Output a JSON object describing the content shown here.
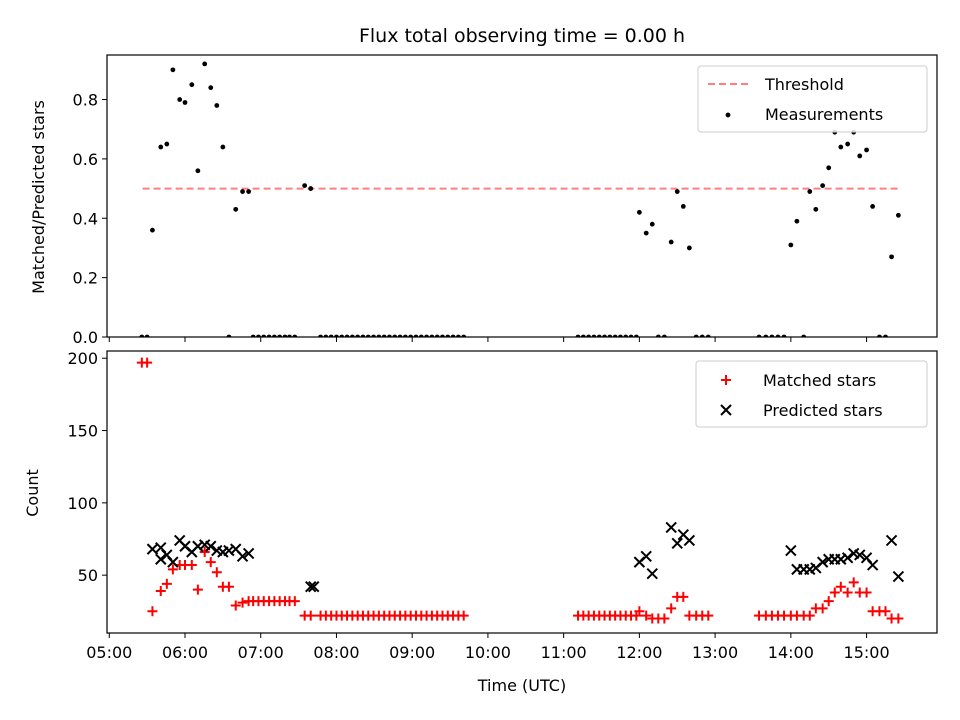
{
  "title": "Flux total observing time = 0.00 h",
  "chart_data": [
    {
      "type": "scatter",
      "ylabel": "Matched/Predicted stars",
      "ylim": [
        0,
        0.95
      ],
      "yticks": [
        0.0,
        0.2,
        0.4,
        0.6,
        0.8
      ],
      "threshold": {
        "name": "Threshold",
        "value": 0.5,
        "x_range": [
          5.44,
          15.44
        ],
        "color": "#ff7f7f"
      },
      "series": [
        {
          "name": "Measurements",
          "color": "#000000",
          "x": [
            5.43,
            5.5,
            5.57,
            5.68,
            5.76,
            5.84,
            5.93,
            6.0,
            6.09,
            6.17,
            6.26,
            6.34,
            6.42,
            6.5,
            6.58,
            6.67,
            6.76,
            6.84,
            6.9,
            6.97,
            7.04,
            7.11,
            7.18,
            7.25,
            7.32,
            7.38,
            7.45,
            7.58,
            7.66,
            7.79,
            7.86,
            7.93,
            8.0,
            8.07,
            8.14,
            8.21,
            8.28,
            8.35,
            8.42,
            8.49,
            8.56,
            8.63,
            8.7,
            8.77,
            8.84,
            8.91,
            8.98,
            9.05,
            9.12,
            9.19,
            9.26,
            9.33,
            9.4,
            9.47,
            9.54,
            9.61,
            9.68,
            11.19,
            11.26,
            11.33,
            11.4,
            11.47,
            11.54,
            11.61,
            11.68,
            11.75,
            11.82,
            11.89,
            11.96,
            12.0,
            12.09,
            12.17,
            12.25,
            12.33,
            12.42,
            12.5,
            12.58,
            12.66,
            12.75,
            12.83,
            12.91,
            13.58,
            13.67,
            13.75,
            13.83,
            13.91,
            14.0,
            14.08,
            14.17,
            14.25,
            14.33,
            14.42,
            14.5,
            14.58,
            14.66,
            14.75,
            14.83,
            14.91,
            15.0,
            15.08,
            15.17,
            15.25,
            15.33,
            15.42
          ],
          "y": [
            0.0,
            0.0,
            0.36,
            0.64,
            0.65,
            0.9,
            0.8,
            0.79,
            0.85,
            0.56,
            0.92,
            0.84,
            0.78,
            0.64,
            0.0,
            0.43,
            0.49,
            0.49,
            0.0,
            0.0,
            0.0,
            0.0,
            0.0,
            0.0,
            0.0,
            0.0,
            0.0,
            0.51,
            0.5,
            0.0,
            0.0,
            0.0,
            0.0,
            0.0,
            0.0,
            0.0,
            0.0,
            0.0,
            0.0,
            0.0,
            0.0,
            0.0,
            0.0,
            0.0,
            0.0,
            0.0,
            0.0,
            0.0,
            0.0,
            0.0,
            0.0,
            0.0,
            0.0,
            0.0,
            0.0,
            0.0,
            0.0,
            0.0,
            0.0,
            0.0,
            0.0,
            0.0,
            0.0,
            0.0,
            0.0,
            0.0,
            0.0,
            0.0,
            0.0,
            0.42,
            0.35,
            0.38,
            0.0,
            0.0,
            0.32,
            0.49,
            0.44,
            0.3,
            0.0,
            0.0,
            0.0,
            0.0,
            0.0,
            0.0,
            0.0,
            0.0,
            0.31,
            0.39,
            0.0,
            0.49,
            0.43,
            0.51,
            0.57,
            0.69,
            0.64,
            0.65,
            0.69,
            0.61,
            0.63,
            0.44,
            0.0,
            0.0,
            0.27,
            0.41
          ]
        }
      ]
    },
    {
      "type": "scatter",
      "xlabel": "Time (UTC)",
      "ylabel": "Count",
      "ylim": [
        10,
        205
      ],
      "yticks": [
        50,
        100,
        150,
        200
      ],
      "xlim": [
        4.97,
        15.93
      ],
      "xticks": [
        5,
        6,
        7,
        8,
        9,
        10,
        11,
        12,
        13,
        14,
        15
      ],
      "xtick_labels": [
        "05:00",
        "06:00",
        "07:00",
        "08:00",
        "09:00",
        "10:00",
        "11:00",
        "12:00",
        "13:00",
        "14:00",
        "15:00"
      ],
      "legend": "top-right",
      "series": [
        {
          "name": "Matched stars",
          "marker": "+",
          "color": "#ff0000",
          "x": [
            5.43,
            5.5,
            5.57,
            5.68,
            5.76,
            5.84,
            5.93,
            6.0,
            6.09,
            6.17,
            6.26,
            6.34,
            6.42,
            6.5,
            6.58,
            6.67,
            6.76,
            6.84,
            6.9,
            6.97,
            7.04,
            7.11,
            7.18,
            7.25,
            7.32,
            7.38,
            7.45,
            7.58,
            7.66,
            7.79,
            7.86,
            7.93,
            8.0,
            8.07,
            8.14,
            8.21,
            8.28,
            8.35,
            8.42,
            8.49,
            8.56,
            8.63,
            8.7,
            8.77,
            8.84,
            8.91,
            8.98,
            9.05,
            9.12,
            9.19,
            9.26,
            9.33,
            9.4,
            9.47,
            9.54,
            9.61,
            9.68,
            11.19,
            11.26,
            11.33,
            11.4,
            11.47,
            11.54,
            11.61,
            11.68,
            11.75,
            11.82,
            11.89,
            11.96,
            12.0,
            12.09,
            12.17,
            12.25,
            12.33,
            12.42,
            12.5,
            12.58,
            12.66,
            12.75,
            12.83,
            12.91,
            13.58,
            13.67,
            13.75,
            13.83,
            13.91,
            14.0,
            14.08,
            14.17,
            14.25,
            14.33,
            14.42,
            14.5,
            14.58,
            14.66,
            14.75,
            14.83,
            14.91,
            15.0,
            15.08,
            15.17,
            15.25,
            15.33,
            15.42
          ],
          "y": [
            197,
            197,
            25,
            39,
            44,
            54,
            57,
            57,
            57,
            40,
            66,
            59,
            52,
            42,
            42,
            29,
            31,
            32,
            32,
            32,
            32,
            32,
            32,
            32,
            32,
            32,
            32,
            22,
            22,
            22,
            22,
            22,
            22,
            22,
            22,
            22,
            22,
            22,
            22,
            22,
            22,
            22,
            22,
            22,
            22,
            22,
            22,
            22,
            22,
            22,
            22,
            22,
            22,
            22,
            22,
            22,
            22,
            22,
            22,
            22,
            22,
            22,
            22,
            22,
            22,
            22,
            22,
            22,
            22,
            25,
            22,
            20,
            20,
            20,
            27,
            35,
            35,
            22,
            22,
            22,
            22,
            22,
            22,
            22,
            22,
            22,
            22,
            22,
            22,
            22,
            27,
            27,
            32,
            38,
            42,
            38,
            45,
            38,
            38,
            25,
            25,
            25,
            20,
            20
          ]
        },
        {
          "name": "Predicted stars",
          "marker": "x",
          "color": "#000000",
          "x": [
            5.57,
            5.68,
            5.68,
            5.76,
            5.84,
            5.93,
            6.0,
            6.09,
            6.17,
            6.26,
            6.34,
            6.42,
            6.5,
            6.58,
            6.67,
            6.76,
            6.84,
            7.66,
            7.7,
            12.0,
            12.09,
            12.17,
            12.42,
            12.5,
            12.58,
            12.66,
            14.0,
            14.08,
            14.17,
            14.25,
            14.33,
            14.42,
            14.5,
            14.58,
            14.66,
            14.75,
            14.83,
            14.91,
            15.0,
            15.08,
            15.33,
            15.42
          ],
          "y": [
            68,
            69,
            61,
            64,
            59,
            74,
            70,
            66,
            70,
            71,
            70,
            67,
            66,
            67,
            68,
            63,
            65,
            42,
            42,
            59,
            63,
            51,
            83,
            72,
            78,
            74,
            67,
            54,
            54,
            54,
            55,
            59,
            61,
            61,
            61,
            62,
            65,
            64,
            62,
            57,
            74,
            49
          ]
        }
      ]
    }
  ]
}
